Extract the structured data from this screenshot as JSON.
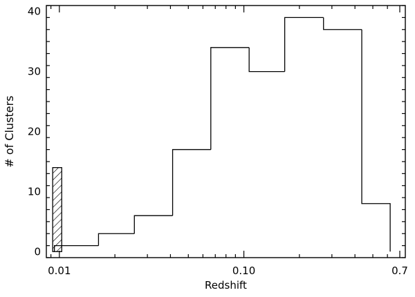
{
  "chart_data": {
    "type": "bar",
    "xscale": "log",
    "xlabel": "Redshift",
    "ylabel": "# of Clusters",
    "xlim": [
      0.0085,
      0.75
    ],
    "ylim": [
      -1,
      41
    ],
    "xticks": [
      {
        "value": 0.01,
        "label": "0.01"
      },
      {
        "value": 0.1,
        "label": "0.10"
      },
      {
        "value": 0.7,
        "label": "0.7"
      }
    ],
    "yticks": [
      {
        "value": 0,
        "label": "0"
      },
      {
        "value": 10,
        "label": "10"
      },
      {
        "value": 20,
        "label": "20"
      },
      {
        "value": 30,
        "label": "30"
      },
      {
        "value": 40,
        "label": "40"
      }
    ],
    "bin_edges": [
      0.0094,
      0.0163,
      0.0255,
      0.0411,
      0.0662,
      0.1068,
      0.1665,
      0.2702,
      0.4356,
      0.6209
    ],
    "counts": [
      1,
      3,
      6,
      17,
      34,
      30,
      39,
      37,
      8
    ],
    "hatched_bar": {
      "x_start": 0.0092,
      "x_end": 0.0103,
      "value": 14
    },
    "grid": false
  },
  "colors": {
    "line": "#000000",
    "background": "#ffffff"
  }
}
